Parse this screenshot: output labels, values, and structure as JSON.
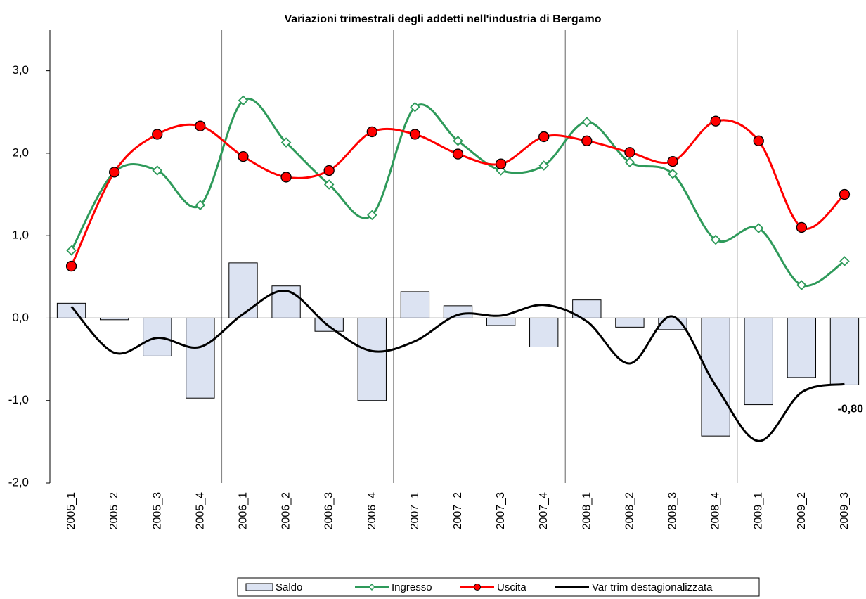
{
  "chart_data": {
    "type": "combo",
    "title": "Variazioni trimestrali degli addetti nell'industria di Bergamo",
    "categories": [
      "2005_1",
      "2005_2",
      "2005_3",
      "2005_4",
      "2006_1",
      "2006_2",
      "2006_3",
      "2006_4",
      "2007_1",
      "2007_2",
      "2007_3",
      "2007_4",
      "2008_1",
      "2008_2",
      "2008_3",
      "2008_4",
      "2009_1",
      "2009_2",
      "2009_3"
    ],
    "series": [
      {
        "name": "Saldo",
        "type": "bar",
        "color": "#dce3f2",
        "values": [
          0.18,
          -0.02,
          -0.46,
          -0.97,
          0.67,
          0.39,
          -0.16,
          -1.0,
          0.32,
          0.15,
          -0.09,
          -0.35,
          0.22,
          -0.11,
          -0.14,
          -1.43,
          -1.05,
          -0.72,
          -0.81
        ]
      },
      {
        "name": "Ingresso",
        "type": "line",
        "color": "#2e9a5a",
        "marker": "diamond",
        "values": [
          0.82,
          1.77,
          1.79,
          1.37,
          2.64,
          2.13,
          1.62,
          1.25,
          2.56,
          2.15,
          1.79,
          1.85,
          2.38,
          1.89,
          1.75,
          0.95,
          1.09,
          0.4,
          0.69
        ]
      },
      {
        "name": "Uscita",
        "type": "line",
        "color": "#ff0000",
        "marker": "circle",
        "values": [
          0.63,
          1.77,
          2.23,
          2.33,
          1.96,
          1.71,
          1.79,
          2.26,
          2.23,
          1.99,
          1.87,
          2.2,
          2.15,
          2.01,
          1.9,
          2.39,
          2.15,
          1.1,
          1.5
        ]
      },
      {
        "name": "Var trim destagionalizzata",
        "type": "line",
        "color": "#000000",
        "values": [
          0.14,
          -0.42,
          -0.24,
          -0.35,
          0.05,
          0.33,
          -0.1,
          -0.4,
          -0.28,
          0.04,
          0.03,
          0.16,
          -0.04,
          -0.55,
          0.02,
          -0.82,
          -1.49,
          -0.9,
          -0.8
        ],
        "value_labels": [
          null,
          null,
          null,
          null,
          null,
          null,
          null,
          null,
          null,
          null,
          null,
          null,
          null,
          null,
          null,
          null,
          null,
          null,
          "-0,80"
        ]
      }
    ],
    "ylim": [
      -2,
      3.5
    ],
    "yticks": [
      {
        "value": -2,
        "label": "-2,0"
      },
      {
        "value": -1,
        "label": "-1,0"
      },
      {
        "value": 0,
        "label": "0,0"
      },
      {
        "value": 1,
        "label": "1,0"
      },
      {
        "value": 2,
        "label": "2,0"
      },
      {
        "value": 3,
        "label": "3,0"
      }
    ],
    "legend": "bottom"
  }
}
